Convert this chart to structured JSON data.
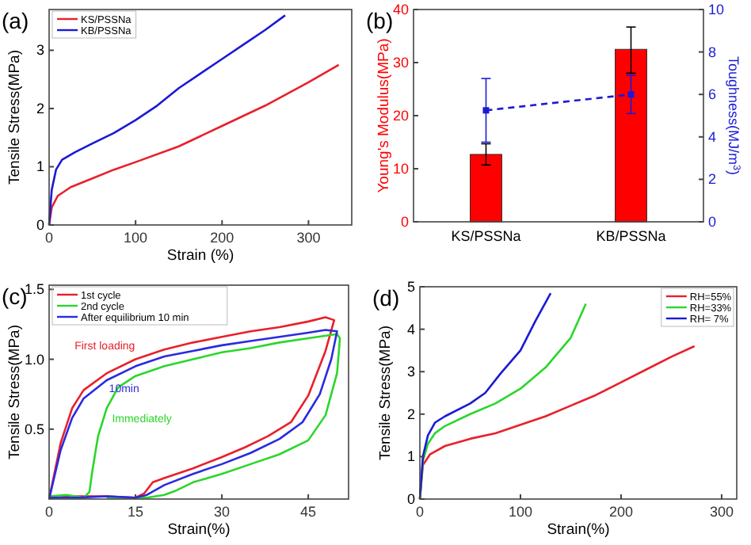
{
  "chart_data": [
    {
      "type": "line",
      "annotations": [
        "(a)"
      ],
      "xlabel": "Strain (%)",
      "ylabel": "Tensile Stress(MPa)",
      "xlim": [
        0,
        350
      ],
      "ylim": [
        0,
        3.7
      ],
      "xticks": [
        0,
        100,
        200,
        300
      ],
      "yticks": [
        0,
        1,
        2,
        3
      ],
      "legend": "top left",
      "series": [
        {
          "name": "KS/PSSNa",
          "color": "#e8202a",
          "x": [
            0,
            3,
            10,
            25,
            50,
            75,
            100,
            150,
            200,
            250,
            300,
            335
          ],
          "values": [
            0,
            0.3,
            0.5,
            0.65,
            0.8,
            0.95,
            1.08,
            1.35,
            1.7,
            2.05,
            2.45,
            2.75
          ]
        },
        {
          "name": "KB/PSSNa",
          "color": "#1a1ad6",
          "x": [
            0,
            3,
            8,
            15,
            30,
            50,
            75,
            100,
            125,
            150,
            175,
            200,
            225,
            250,
            273
          ],
          "values": [
            0,
            0.6,
            0.95,
            1.12,
            1.25,
            1.4,
            1.58,
            1.8,
            2.05,
            2.35,
            2.6,
            2.85,
            3.1,
            3.35,
            3.6
          ]
        }
      ]
    },
    {
      "type": "bar",
      "annotations": [
        "(b)"
      ],
      "ylabel": "Young's Modulus(MPa)",
      "y2label": "Toughness(MJ/m$^{3}$)",
      "categories": [
        "KS/PSSNa",
        "KB/PSSNa"
      ],
      "ylim": [
        0,
        40
      ],
      "yticks": [
        0,
        10,
        20,
        30,
        40
      ],
      "y2lim": [
        0,
        10
      ],
      "y2ticks": [
        0,
        2,
        4,
        6,
        8,
        10
      ],
      "series": [
        {
          "color": "#ff0000",
          "values": [
            12.7,
            32.5
          ],
          "errors": [
            [
              10.7,
              14.7
            ],
            [
              28,
              36.7
            ]
          ]
        },
        {
          "type": "line",
          "axis": "y2",
          "color": "#1a1ad6",
          "line_style": "dashed",
          "marker": "square",
          "values": [
            5.25,
            6.0
          ],
          "errors": [
            [
              3.75,
              6.75
            ],
            [
              5.1,
              6.9
            ]
          ]
        }
      ]
    },
    {
      "type": "line",
      "annotations": [
        "(c)",
        "First loading",
        "Immediately",
        "10min"
      ],
      "xlabel": "Strain(%)",
      "ylabel": "Tensile Stress(MPa)",
      "xlim": [
        0,
        52
      ],
      "ylim": [
        0,
        1.53
      ],
      "xticks": [
        0,
        15,
        30,
        45
      ],
      "yticks": [
        {
          "value": 0.5,
          "label": "0.5"
        },
        {
          "value": 1,
          "label": "1.0"
        },
        {
          "value": 1.5,
          "label": "1.5"
        }
      ],
      "legend": "top left",
      "series": [
        {
          "name": "1st cycle",
          "color": "#e8202a",
          "x": [
            0,
            2,
            4,
            6,
            10,
            15,
            20,
            25,
            30,
            35,
            40,
            45,
            48,
            49.5,
            48,
            45,
            42,
            38,
            34,
            30,
            25,
            20,
            18,
            16.5,
            15,
            10,
            5,
            0
          ],
          "values": [
            0,
            0.4,
            0.65,
            0.78,
            0.9,
            1.0,
            1.07,
            1.12,
            1.16,
            1.2,
            1.23,
            1.27,
            1.3,
            1.28,
            1.06,
            0.74,
            0.55,
            0.45,
            0.37,
            0.3,
            0.22,
            0.15,
            0.12,
            0.04,
            0.01,
            0.02,
            0.02,
            0.01
          ]
        },
        {
          "name": "2nd cycle",
          "color": "#2bd62b",
          "x": [
            0,
            3,
            6,
            7,
            7.5,
            8.5,
            10,
            12,
            15,
            20,
            25,
            30,
            35,
            40,
            45,
            50,
            50.5,
            50,
            48,
            45,
            40,
            35,
            30,
            25,
            22,
            20,
            17,
            10
          ],
          "values": [
            0.02,
            0.03,
            0.01,
            0.05,
            0.2,
            0.45,
            0.65,
            0.8,
            0.88,
            0.95,
            1.0,
            1.05,
            1.08,
            1.12,
            1.15,
            1.18,
            1.15,
            0.9,
            0.6,
            0.42,
            0.32,
            0.25,
            0.18,
            0.12,
            0.06,
            0.03,
            0.01,
            0.01
          ]
        },
        {
          "name": "After equilibrium 10 min",
          "color": "#2a2ae0",
          "x": [
            0,
            2,
            4,
            6,
            10,
            15,
            20,
            25,
            30,
            35,
            40,
            45,
            48,
            50,
            49,
            47,
            44,
            40,
            35,
            30,
            25,
            20,
            17,
            15,
            10,
            5,
            0
          ],
          "values": [
            0,
            0.35,
            0.58,
            0.72,
            0.85,
            0.95,
            1.02,
            1.06,
            1.1,
            1.13,
            1.16,
            1.19,
            1.21,
            1.2,
            1.0,
            0.75,
            0.55,
            0.43,
            0.33,
            0.25,
            0.18,
            0.1,
            0.03,
            0.01,
            0.02,
            0.01,
            0.01
          ]
        }
      ]
    },
    {
      "type": "line",
      "annotations": [
        "(d)"
      ],
      "xlabel": "Strain(%)",
      "ylabel": "Tensile Stress(MPa)",
      "xlim": [
        0,
        315
      ],
      "ylim": [
        0,
        5
      ],
      "xticks": [
        0,
        100,
        200,
        300
      ],
      "yticks": [
        0,
        1,
        2,
        3,
        4,
        5
      ],
      "legend": "top right",
      "series": [
        {
          "name": "RH=55%",
          "color": "#e8202a",
          "x": [
            0,
            3,
            10,
            25,
            50,
            75,
            100,
            125,
            150,
            175,
            200,
            225,
            250,
            273
          ],
          "values": [
            0,
            0.8,
            1.05,
            1.25,
            1.42,
            1.55,
            1.75,
            1.95,
            2.2,
            2.45,
            2.75,
            3.05,
            3.35,
            3.6
          ]
        },
        {
          "name": "RH=33%",
          "color": "#2bd62b",
          "x": [
            0,
            3,
            8,
            15,
            25,
            50,
            75,
            100,
            125,
            150,
            165
          ],
          "values": [
            0,
            0.9,
            1.3,
            1.55,
            1.72,
            2.0,
            2.25,
            2.6,
            3.1,
            3.8,
            4.6
          ]
        },
        {
          "name": "RH= 7%",
          "color": "#1a1ad6",
          "x": [
            0,
            3,
            8,
            15,
            25,
            50,
            65,
            80,
            100,
            115,
            130
          ],
          "values": [
            0,
            1.0,
            1.5,
            1.8,
            1.95,
            2.25,
            2.5,
            2.95,
            3.5,
            4.2,
            4.85
          ]
        }
      ]
    }
  ]
}
